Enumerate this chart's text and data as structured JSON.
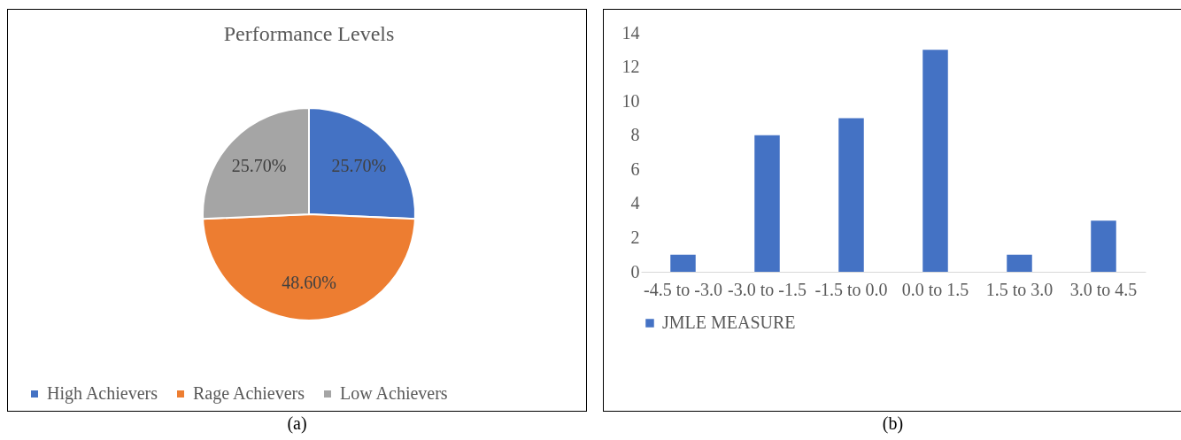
{
  "chart_data": [
    {
      "type": "pie",
      "title": "Performance Levels",
      "categories": [
        "High Achievers",
        "Rage Achievers",
        "Low Achievers"
      ],
      "values": [
        25.7,
        48.6,
        25.7
      ],
      "colors": [
        "#4472c4",
        "#ed7d31",
        "#a5a5a5"
      ],
      "value_labels": [
        "25.70%",
        "48.60%",
        "25.70%"
      ],
      "legend": "bottom",
      "annotations": [
        "(a)"
      ]
    },
    {
      "type": "bar",
      "categories": [
        "-4.5 to -3.0",
        "-3.0 to -1.5",
        "-1.5 to 0.0",
        "0.0 to 1.5",
        "1.5 to 3.0",
        "3.0 to 4.5"
      ],
      "series": [
        {
          "name": "JMLE MEASURE",
          "color": "#4472c4",
          "values": [
            1,
            8,
            9,
            13,
            1,
            3
          ]
        }
      ],
      "ylim": [
        0,
        14
      ],
      "yticks": [
        0,
        2,
        4,
        6,
        8,
        10,
        12,
        14
      ],
      "grid": false,
      "legend": "bottom",
      "annotations": [
        "(b)"
      ]
    }
  ]
}
